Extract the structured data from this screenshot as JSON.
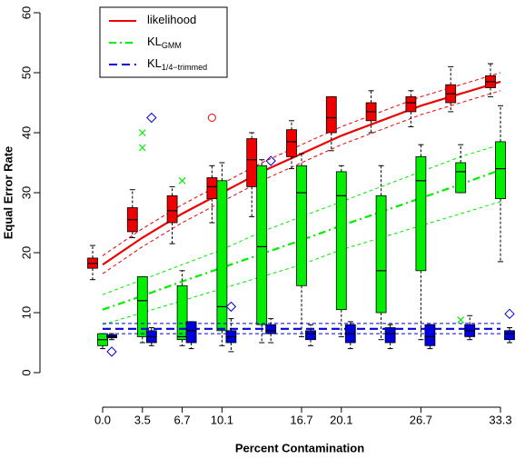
{
  "chart_data": {
    "type": "box",
    "x_label": "Percent Contamination",
    "y_label": "Equal Error Rate",
    "categories": [
      "0.0",
      "3.5",
      "6.7",
      "10.1",
      null,
      "16.7",
      "20.1",
      null,
      "26.7",
      null,
      "33.3"
    ],
    "ylim": [
      0,
      60
    ],
    "yticks": [
      0,
      10,
      20,
      30,
      40,
      50,
      60
    ],
    "legend": "top-left",
    "series": [
      {
        "name": "likelihood",
        "color": "#ee0000",
        "marker": "circle",
        "line_style": "solid",
        "boxes": [
          {
            "low": 15.5,
            "q1": 17.4,
            "median": 18.2,
            "q3": 19.1,
            "high": 21.2,
            "outliers": []
          },
          {
            "low": 22.5,
            "q1": 23.5,
            "median": 25.5,
            "q3": 27.5,
            "high": 30.5,
            "outliers": []
          },
          {
            "low": 21.5,
            "q1": 25,
            "median": 27,
            "q3": 29.5,
            "high": 31,
            "outliers": []
          },
          {
            "low": 25,
            "q1": 29,
            "median": 31,
            "q3": 32.5,
            "high": 34.5,
            "outliers": [
              42.5
            ]
          },
          {
            "low": 26,
            "q1": 31,
            "median": 35.5,
            "q3": 39,
            "high": 40,
            "outliers": []
          },
          {
            "low": 34,
            "q1": 36,
            "median": 38.5,
            "q3": 40.5,
            "high": 42,
            "outliers": []
          },
          {
            "low": 37,
            "q1": 40,
            "median": 42.5,
            "q3": 46,
            "high": 46,
            "outliers": []
          },
          {
            "low": 40,
            "q1": 42,
            "median": 43.5,
            "q3": 45,
            "high": 47,
            "outliers": []
          },
          {
            "low": 41,
            "q1": 43.5,
            "median": 45,
            "q3": 46,
            "high": 47,
            "outliers": []
          },
          {
            "low": 43.5,
            "q1": 45,
            "median": 46.5,
            "q3": 48,
            "high": 51,
            "outliers": []
          },
          {
            "low": 46,
            "q1": 47.5,
            "median": 48.5,
            "q3": 49.5,
            "high": 51.5,
            "outliers": []
          }
        ],
        "fit": [
          18,
          22.5,
          26.5,
          30,
          33.5,
          36.5,
          39.5,
          42,
          44.5,
          46.5,
          48.5
        ],
        "fit_lower": [
          16.5,
          21,
          25,
          28.5,
          32,
          35,
          38,
          40.5,
          43,
          45,
          47
        ],
        "fit_upper": [
          19.5,
          24,
          28,
          31.5,
          35,
          38,
          41,
          43.5,
          46,
          48,
          50
        ]
      },
      {
        "name": "KL",
        "subscript": "GMM",
        "color": "#00ee00",
        "marker": "cross",
        "line_style": "dashdot",
        "boxes": [
          {
            "low": 4,
            "q1": 4.5,
            "median": 5.5,
            "q3": 6.5,
            "high": 6.5,
            "outliers": []
          },
          {
            "low": 5,
            "q1": 6,
            "median": 12,
            "q3": 16,
            "high": 16,
            "outliers": [
              40,
              37.5
            ]
          },
          {
            "low": 4.5,
            "q1": 5.5,
            "median": 6,
            "q3": 14.5,
            "high": 17,
            "outliers": [
              32
            ]
          },
          {
            "low": 4.5,
            "q1": 7,
            "median": 11,
            "q3": 32,
            "high": 35,
            "outliers": []
          },
          {
            "low": 5,
            "q1": 8,
            "median": 21,
            "q3": 34.5,
            "high": 35.5,
            "outliers": []
          },
          {
            "low": 6,
            "q1": 14.5,
            "median": 30,
            "q3": 34.5,
            "high": 36.5,
            "outliers": []
          },
          {
            "low": 6,
            "q1": 10.5,
            "median": 29.5,
            "q3": 33.5,
            "high": 34.5,
            "outliers": []
          },
          {
            "low": 5.5,
            "q1": 10,
            "median": 17,
            "q3": 29.5,
            "high": 34.5,
            "outliers": []
          },
          {
            "low": 5.5,
            "q1": 17,
            "median": 32,
            "q3": 36,
            "high": 38,
            "outliers": []
          },
          {
            "low": 30,
            "q1": 30,
            "median": 33.5,
            "q3": 35,
            "high": 38,
            "outliers": [
              8.8
            ]
          },
          {
            "low": 18.5,
            "q1": 29,
            "median": 34,
            "q3": 38.5,
            "high": 44.5,
            "outliers": []
          }
        ],
        "fit": [
          10.5,
          12.8,
          15.2,
          17.5,
          19.8,
          22.1,
          24.5,
          26.8,
          29.1,
          31.4,
          33.8
        ],
        "fit_lower": [
          8,
          10,
          12,
          14,
          16,
          18,
          20.5,
          22.5,
          24.5,
          26.5,
          28.5
        ],
        "fit_upper": [
          13,
          15.5,
          18,
          20.5,
          23.5,
          26,
          28.5,
          31,
          33.5,
          36,
          38
        ]
      },
      {
        "name": "KL",
        "subscript": "1/4−trimmed",
        "color": "#0000dd",
        "marker": "diamond",
        "line_style": "dashed",
        "boxes": [
          {
            "low": 5.5,
            "q1": 5.8,
            "median": 6,
            "q3": 6.3,
            "high": 6.5,
            "outliers": [
              3.5
            ]
          },
          {
            "low": 4.5,
            "q1": 5,
            "median": 6,
            "q3": 7,
            "high": 7.5,
            "outliers": [
              42.5
            ]
          },
          {
            "low": 4,
            "q1": 5,
            "median": 7,
            "q3": 8.5,
            "high": 8.5,
            "outliers": []
          },
          {
            "low": 3.5,
            "q1": 5,
            "median": 6,
            "q3": 7,
            "high": 9,
            "outliers": [
              11
            ]
          },
          {
            "low": 5,
            "q1": 6.5,
            "median": 7,
            "q3": 8,
            "high": 9,
            "outliers": [
              35.3
            ]
          },
          {
            "low": 4.5,
            "q1": 5.5,
            "median": 6.5,
            "q3": 7,
            "high": 8,
            "outliers": []
          },
          {
            "low": 4,
            "q1": 5,
            "median": 6.5,
            "q3": 8,
            "high": 8.5,
            "outliers": []
          },
          {
            "low": 4,
            "q1": 5,
            "median": 6.5,
            "q3": 7.5,
            "high": 8,
            "outliers": []
          },
          {
            "low": 4,
            "q1": 4.5,
            "median": 6,
            "q3": 8,
            "high": 8,
            "outliers": []
          },
          {
            "low": 5.5,
            "q1": 6,
            "median": 7,
            "q3": 8,
            "high": 9.5,
            "outliers": []
          },
          {
            "low": 5,
            "q1": 5.5,
            "median": 6.5,
            "q3": 7,
            "high": 7.5,
            "outliers": [
              9.8
            ]
          }
        ],
        "fit": [
          7.3,
          7.3,
          7.3,
          7.3,
          7.3,
          7.3,
          7.3,
          7.3,
          7.3,
          7.3,
          7.3
        ],
        "fit_lower": [
          6.5,
          6.5,
          6.5,
          6.5,
          6.5,
          6.5,
          6.5,
          6.5,
          6.5,
          6.5,
          6.5
        ],
        "fit_upper": [
          8.2,
          8.2,
          8.2,
          8.2,
          8.2,
          8.2,
          8.2,
          8.2,
          8.2,
          8.2,
          8.2
        ]
      }
    ]
  }
}
